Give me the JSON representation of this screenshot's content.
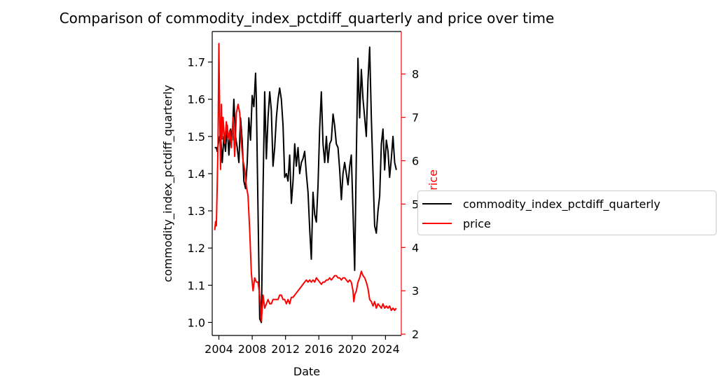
{
  "title": "Comparison of commodity_index_pctdiff_quarterly and price over time",
  "chart_data": {
    "type": "line",
    "title": "Comparison of commodity_index_pctdiff_quarterly and price over time",
    "xlabel": "Date",
    "x_ticks": [
      "2004",
      "2008",
      "2012",
      "2016",
      "2020",
      "2024"
    ],
    "xlim": [
      2003.2,
      2025.9
    ],
    "axes": {
      "left": {
        "label": "commodity_index_pctdiff_quarterly",
        "ylim": [
          0.965,
          1.782
        ],
        "ticks": [
          "1.0",
          "1.1",
          "1.2",
          "1.3",
          "1.4",
          "1.5",
          "1.6",
          "1.7"
        ],
        "color": "#000000"
      },
      "right": {
        "label": "price",
        "ylim": [
          1.97,
          8.98
        ],
        "ticks": [
          "2",
          "3",
          "4",
          "5",
          "6",
          "7",
          "8"
        ],
        "color": "#ff0000"
      }
    },
    "series": [
      {
        "name": "commodity_index_pctdiff_quarterly",
        "axis": "left",
        "color": "#000000",
        "points": [
          [
            2003.5,
            1.47
          ],
          [
            2003.7,
            1.47
          ],
          [
            2003.8,
            1.46
          ],
          [
            2004.0,
            1.49
          ],
          [
            2004.2,
            1.51
          ],
          [
            2004.4,
            1.43
          ],
          [
            2004.6,
            1.5
          ],
          [
            2004.8,
            1.46
          ],
          [
            2005.0,
            1.53
          ],
          [
            2005.2,
            1.45
          ],
          [
            2005.4,
            1.52
          ],
          [
            2005.6,
            1.49
          ],
          [
            2005.8,
            1.6
          ],
          [
            2006.0,
            1.5
          ],
          [
            2006.2,
            1.47
          ],
          [
            2006.4,
            1.43
          ],
          [
            2006.6,
            1.55
          ],
          [
            2006.8,
            1.49
          ],
          [
            2007.0,
            1.38
          ],
          [
            2007.2,
            1.36
          ],
          [
            2007.4,
            1.43
          ],
          [
            2007.6,
            1.55
          ],
          [
            2007.8,
            1.49
          ],
          [
            2008.0,
            1.61
          ],
          [
            2008.2,
            1.58
          ],
          [
            2008.4,
            1.67
          ],
          [
            2008.5,
            1.6
          ],
          [
            2008.7,
            1.3
          ],
          [
            2008.9,
            1.01
          ],
          [
            2009.1,
            1.0
          ],
          [
            2009.3,
            1.36
          ],
          [
            2009.5,
            1.62
          ],
          [
            2009.7,
            1.44
          ],
          [
            2009.9,
            1.55
          ],
          [
            2010.1,
            1.62
          ],
          [
            2010.3,
            1.57
          ],
          [
            2010.5,
            1.42
          ],
          [
            2010.7,
            1.47
          ],
          [
            2010.9,
            1.55
          ],
          [
            2011.1,
            1.6
          ],
          [
            2011.3,
            1.63
          ],
          [
            2011.5,
            1.6
          ],
          [
            2011.7,
            1.53
          ],
          [
            2011.9,
            1.39
          ],
          [
            2012.1,
            1.4
          ],
          [
            2012.3,
            1.38
          ],
          [
            2012.5,
            1.45
          ],
          [
            2012.7,
            1.32
          ],
          [
            2012.9,
            1.38
          ],
          [
            2013.1,
            1.48
          ],
          [
            2013.3,
            1.42
          ],
          [
            2013.5,
            1.47
          ],
          [
            2013.7,
            1.4
          ],
          [
            2013.9,
            1.43
          ],
          [
            2014.1,
            1.44
          ],
          [
            2014.3,
            1.46
          ],
          [
            2014.5,
            1.4
          ],
          [
            2014.7,
            1.35
          ],
          [
            2014.9,
            1.25
          ],
          [
            2015.1,
            1.17
          ],
          [
            2015.3,
            1.35
          ],
          [
            2015.5,
            1.29
          ],
          [
            2015.7,
            1.27
          ],
          [
            2015.9,
            1.37
          ],
          [
            2016.1,
            1.52
          ],
          [
            2016.3,
            1.62
          ],
          [
            2016.5,
            1.48
          ],
          [
            2016.7,
            1.43
          ],
          [
            2016.9,
            1.5
          ],
          [
            2017.1,
            1.43
          ],
          [
            2017.3,
            1.48
          ],
          [
            2017.5,
            1.49
          ],
          [
            2017.7,
            1.56
          ],
          [
            2017.9,
            1.53
          ],
          [
            2018.1,
            1.48
          ],
          [
            2018.3,
            1.47
          ],
          [
            2018.5,
            1.41
          ],
          [
            2018.7,
            1.33
          ],
          [
            2018.9,
            1.4
          ],
          [
            2019.1,
            1.43
          ],
          [
            2019.3,
            1.4
          ],
          [
            2019.5,
            1.37
          ],
          [
            2019.7,
            1.42
          ],
          [
            2019.9,
            1.45
          ],
          [
            2020.1,
            1.3
          ],
          [
            2020.3,
            1.14
          ],
          [
            2020.5,
            1.45
          ],
          [
            2020.7,
            1.71
          ],
          [
            2020.9,
            1.55
          ],
          [
            2021.1,
            1.68
          ],
          [
            2021.3,
            1.6
          ],
          [
            2021.5,
            1.55
          ],
          [
            2021.7,
            1.5
          ],
          [
            2021.9,
            1.65
          ],
          [
            2022.1,
            1.74
          ],
          [
            2022.3,
            1.55
          ],
          [
            2022.5,
            1.4
          ],
          [
            2022.7,
            1.26
          ],
          [
            2022.9,
            1.24
          ],
          [
            2023.1,
            1.3
          ],
          [
            2023.3,
            1.34
          ],
          [
            2023.5,
            1.48
          ],
          [
            2023.7,
            1.52
          ],
          [
            2023.9,
            1.41
          ],
          [
            2024.1,
            1.49
          ],
          [
            2024.3,
            1.46
          ],
          [
            2024.5,
            1.39
          ],
          [
            2024.7,
            1.44
          ],
          [
            2024.9,
            1.5
          ],
          [
            2025.1,
            1.43
          ],
          [
            2025.3,
            1.41
          ]
        ]
      },
      {
        "name": "price",
        "axis": "right",
        "color": "#ff0000",
        "points": [
          [
            2003.5,
            4.4
          ],
          [
            2003.6,
            4.6
          ],
          [
            2003.7,
            4.5
          ],
          [
            2003.8,
            5.4
          ],
          [
            2003.9,
            6.4
          ],
          [
            2004.0,
            8.7
          ],
          [
            2004.1,
            7.0
          ],
          [
            2004.2,
            5.8
          ],
          [
            2004.3,
            7.3
          ],
          [
            2004.4,
            6.5
          ],
          [
            2004.5,
            7.0
          ],
          [
            2004.7,
            6.4
          ],
          [
            2004.9,
            6.9
          ],
          [
            2005.1,
            6.5
          ],
          [
            2005.3,
            6.7
          ],
          [
            2005.5,
            6.3
          ],
          [
            2005.7,
            7.0
          ],
          [
            2005.9,
            6.1
          ],
          [
            2006.1,
            7.1
          ],
          [
            2006.3,
            7.3
          ],
          [
            2006.5,
            7.1
          ],
          [
            2006.7,
            6.4
          ],
          [
            2006.9,
            6.0
          ],
          [
            2007.1,
            5.8
          ],
          [
            2007.3,
            5.4
          ],
          [
            2007.5,
            5.2
          ],
          [
            2007.7,
            4.4
          ],
          [
            2007.9,
            3.4
          ],
          [
            2008.1,
            3.0
          ],
          [
            2008.3,
            3.3
          ],
          [
            2008.5,
            3.2
          ],
          [
            2008.7,
            3.2
          ],
          [
            2008.9,
            2.9
          ],
          [
            2009.1,
            2.3
          ],
          [
            2009.3,
            2.9
          ],
          [
            2009.5,
            2.6
          ],
          [
            2009.7,
            2.7
          ],
          [
            2009.9,
            2.8
          ],
          [
            2010.1,
            2.7
          ],
          [
            2010.3,
            2.7
          ],
          [
            2010.5,
            2.8
          ],
          [
            2010.7,
            2.8
          ],
          [
            2010.9,
            2.8
          ],
          [
            2011.1,
            2.8
          ],
          [
            2011.3,
            2.9
          ],
          [
            2011.5,
            2.9
          ],
          [
            2011.7,
            2.8
          ],
          [
            2011.9,
            2.8
          ],
          [
            2012.1,
            2.7
          ],
          [
            2012.3,
            2.8
          ],
          [
            2012.5,
            2.7
          ],
          [
            2012.7,
            2.85
          ],
          [
            2012.9,
            2.85
          ],
          [
            2013.1,
            2.9
          ],
          [
            2013.3,
            2.95
          ],
          [
            2013.5,
            3.0
          ],
          [
            2013.7,
            3.05
          ],
          [
            2013.9,
            3.1
          ],
          [
            2014.1,
            3.15
          ],
          [
            2014.3,
            3.2
          ],
          [
            2014.5,
            3.25
          ],
          [
            2014.7,
            3.2
          ],
          [
            2014.9,
            3.25
          ],
          [
            2015.1,
            3.2
          ],
          [
            2015.3,
            3.25
          ],
          [
            2015.5,
            3.2
          ],
          [
            2015.7,
            3.3
          ],
          [
            2015.9,
            3.25
          ],
          [
            2016.1,
            3.2
          ],
          [
            2016.3,
            3.15
          ],
          [
            2016.5,
            3.2
          ],
          [
            2016.7,
            3.2
          ],
          [
            2016.9,
            3.25
          ],
          [
            2017.1,
            3.25
          ],
          [
            2017.3,
            3.3
          ],
          [
            2017.5,
            3.25
          ],
          [
            2017.7,
            3.3
          ],
          [
            2017.9,
            3.35
          ],
          [
            2018.1,
            3.35
          ],
          [
            2018.3,
            3.3
          ],
          [
            2018.5,
            3.3
          ],
          [
            2018.7,
            3.25
          ],
          [
            2018.9,
            3.3
          ],
          [
            2019.1,
            3.3
          ],
          [
            2019.3,
            3.25
          ],
          [
            2019.5,
            3.2
          ],
          [
            2019.7,
            3.25
          ],
          [
            2019.9,
            3.2
          ],
          [
            2020.1,
            3.0
          ],
          [
            2020.2,
            2.75
          ],
          [
            2020.3,
            2.9
          ],
          [
            2020.5,
            3.0
          ],
          [
            2020.7,
            3.2
          ],
          [
            2020.9,
            3.3
          ],
          [
            2021.1,
            3.45
          ],
          [
            2021.3,
            3.35
          ],
          [
            2021.5,
            3.3
          ],
          [
            2021.7,
            3.2
          ],
          [
            2021.9,
            3.05
          ],
          [
            2022.1,
            2.8
          ],
          [
            2022.3,
            2.75
          ],
          [
            2022.5,
            2.65
          ],
          [
            2022.7,
            2.75
          ],
          [
            2022.9,
            2.6
          ],
          [
            2023.1,
            2.7
          ],
          [
            2023.3,
            2.65
          ],
          [
            2023.5,
            2.6
          ],
          [
            2023.7,
            2.7
          ],
          [
            2023.9,
            2.6
          ],
          [
            2024.1,
            2.65
          ],
          [
            2024.3,
            2.6
          ],
          [
            2024.5,
            2.65
          ],
          [
            2024.7,
            2.55
          ],
          [
            2024.9,
            2.6
          ],
          [
            2025.1,
            2.55
          ],
          [
            2025.3,
            2.6
          ]
        ]
      }
    ],
    "legend": {
      "placement": "right",
      "entries": [
        "commodity_index_pctdiff_quarterly",
        "price"
      ]
    }
  }
}
